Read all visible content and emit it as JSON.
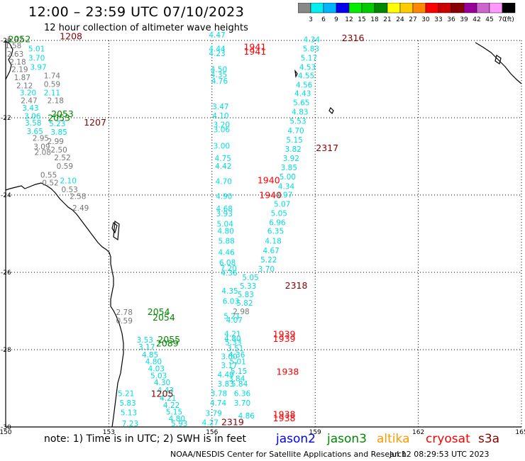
{
  "header": {
    "title": "12:00 – 23:59 UTC 07/10/2023",
    "subtitle": "12 hour collection of altimeter wave heights"
  },
  "scale": {
    "colors": [
      "#888888",
      "#00eeee",
      "#00b4ff",
      "#0000ee",
      "#00ee00",
      "#00cc00",
      "#008800",
      "#ffff00",
      "#ffcc00",
      "#ff8800",
      "#ff0000",
      "#cc0000",
      "#880000",
      "#990099",
      "#cc66cc",
      "#ff99ff",
      "#000000"
    ],
    "labels": [
      "3",
      "6",
      "9",
      "12",
      "15",
      "18",
      "21",
      "24",
      "27",
      "30",
      "33",
      "36",
      "39",
      "42",
      "45",
      "70"
    ],
    "unit": "(ft)"
  },
  "map": {
    "lon_min": 150,
    "lon_max": 165,
    "lat_top": -20,
    "lat_bottom": -30,
    "x_ticks": [
      "150",
      "153",
      "156",
      "159",
      "162",
      "165"
    ],
    "y_ticks": [
      "-20",
      "-22",
      "-24",
      "-26",
      "-28",
      "-30"
    ],
    "colors": {
      "jason2": "#0000ff",
      "jason3": "#008800",
      "altika": "#ff9900",
      "cryosat": "#ff0000",
      "s3a": "#880000",
      "wave_cyan": "#00dddd",
      "wave_gray": "#777777"
    }
  },
  "wave_data": [
    {
      "value": "1.92",
      "lon": 150.28,
      "lat": -20.05,
      "color": "#777777"
    },
    {
      "value": "1.58",
      "lon": 150.22,
      "lat": -20.2,
      "color": "#777777"
    },
    {
      "value": "2.63",
      "lon": 150.28,
      "lat": -20.42,
      "color": "#777777"
    },
    {
      "value": "2.18",
      "lon": 150.35,
      "lat": -20.62,
      "color": "#777777"
    },
    {
      "value": "2.19",
      "lon": 150.41,
      "lat": -20.82,
      "color": "#777777"
    },
    {
      "value": "1.87",
      "lon": 150.48,
      "lat": -21.03,
      "color": "#777777"
    },
    {
      "value": "2.12",
      "lon": 150.55,
      "lat": -21.24,
      "color": "#777777"
    },
    {
      "value": "2.47",
      "lon": 150.68,
      "lat": -21.62,
      "color": "#777777"
    },
    {
      "value": "1.74",
      "lon": 151.35,
      "lat": -20.98,
      "color": "#777777"
    },
    {
      "value": "0.59",
      "lon": 151.35,
      "lat": -21.2,
      "color": "#777777"
    },
    {
      "value": "2.18",
      "lon": 151.45,
      "lat": -21.62,
      "color": "#777777"
    },
    {
      "value": "2.95",
      "lon": 151.02,
      "lat": -22.6,
      "color": "#777777"
    },
    {
      "value": "2.99",
      "lon": 151.45,
      "lat": -22.68,
      "color": "#777777"
    },
    {
      "value": "3.09",
      "lon": 151.05,
      "lat": -22.82,
      "color": "#777777"
    },
    {
      "value": "2.50",
      "lon": 151.55,
      "lat": -22.9,
      "color": "#777777"
    },
    {
      "value": "2.08",
      "lon": 151.08,
      "lat": -22.96,
      "color": "#777777"
    },
    {
      "value": "2.52",
      "lon": 151.65,
      "lat": -23.1,
      "color": "#777777"
    },
    {
      "value": "0.59",
      "lon": 151.72,
      "lat": -23.32,
      "color": "#777777"
    },
    {
      "value": "0.55",
      "lon": 151.25,
      "lat": -23.55,
      "color": "#777777"
    },
    {
      "value": "0.52",
      "lon": 151.3,
      "lat": -23.75,
      "color": "#777777"
    },
    {
      "value": "0.53",
      "lon": 151.86,
      "lat": -23.93,
      "color": "#777777"
    },
    {
      "value": "2.58",
      "lon": 152.1,
      "lat": -24.1,
      "color": "#777777"
    },
    {
      "value": "2.49",
      "lon": 152.18,
      "lat": -24.4,
      "color": "#777777"
    },
    {
      "value": "5.01",
      "lon": 150.9,
      "lat": -20.28,
      "color": "#00dddd"
    },
    {
      "value": "3.70",
      "lon": 150.9,
      "lat": -20.52,
      "color": "#00dddd"
    },
    {
      "value": "3.97",
      "lon": 150.95,
      "lat": -20.76,
      "color": "#00dddd"
    },
    {
      "value": "3.20",
      "lon": 150.65,
      "lat": -21.42,
      "color": "#00dddd"
    },
    {
      "value": "2.11",
      "lon": 151.35,
      "lat": -21.42,
      "color": "#00dddd"
    },
    {
      "value": "3.43",
      "lon": 150.72,
      "lat": -21.82,
      "color": "#00dddd"
    },
    {
      "value": "3.06",
      "lon": 150.78,
      "lat": -22.03,
      "color": "#00dddd"
    },
    {
      "value": "3.58",
      "lon": 150.8,
      "lat": -22.2,
      "color": "#00dddd"
    },
    {
      "value": "5.23",
      "lon": 151.5,
      "lat": -22.22,
      "color": "#00dddd"
    },
    {
      "value": "3.85",
      "lon": 151.55,
      "lat": -22.44,
      "color": "#00dddd"
    },
    {
      "value": "3.65",
      "lon": 150.85,
      "lat": -22.42,
      "color": "#00dddd"
    },
    {
      "value": "2.10",
      "lon": 151.82,
      "lat": -23.7,
      "color": "#00dddd"
    },
    {
      "value": "4.47",
      "lon": 156.15,
      "lat": -19.93,
      "color": "#00dddd"
    },
    {
      "value": "4.44",
      "lon": 156.15,
      "lat": -20.28,
      "color": "#00dddd"
    },
    {
      "value": "4.23",
      "lon": 156.15,
      "lat": -20.4,
      "color": "#00dddd"
    },
    {
      "value": "4.50",
      "lon": 156.2,
      "lat": -20.82,
      "color": "#00dddd"
    },
    {
      "value": "4.35",
      "lon": 156.2,
      "lat": -20.95,
      "color": "#00dddd"
    },
    {
      "value": "4.76",
      "lon": 156.22,
      "lat": -21.12,
      "color": "#00dddd"
    },
    {
      "value": "3.47",
      "lon": 156.25,
      "lat": -21.78,
      "color": "#00dddd"
    },
    {
      "value": "4.10",
      "lon": 156.25,
      "lat": -22.02,
      "color": "#00dddd"
    },
    {
      "value": "3.20",
      "lon": 156.28,
      "lat": -22.25,
      "color": "#00dddd"
    },
    {
      "value": "3.06",
      "lon": 156.28,
      "lat": -22.38,
      "color": "#00dddd"
    },
    {
      "value": "3.00",
      "lon": 156.28,
      "lat": -22.8,
      "color": "#00dddd"
    },
    {
      "value": "4.75",
      "lon": 156.32,
      "lat": -23.12,
      "color": "#00dddd"
    },
    {
      "value": "4.42",
      "lon": 156.33,
      "lat": -23.32,
      "color": "#00dddd"
    },
    {
      "value": "4.70",
      "lon": 156.34,
      "lat": -23.72,
      "color": "#00dddd"
    },
    {
      "value": "4.90",
      "lon": 156.35,
      "lat": -24.1,
      "color": "#00dddd"
    },
    {
      "value": "4.68",
      "lon": 156.36,
      "lat": -24.42,
      "color": "#00dddd"
    },
    {
      "value": "3.93",
      "lon": 156.36,
      "lat": -24.55,
      "color": "#00dddd"
    },
    {
      "value": "5.04",
      "lon": 156.38,
      "lat": -24.82,
      "color": "#00dddd"
    },
    {
      "value": "4.80",
      "lon": 156.4,
      "lat": -25.0,
      "color": "#00dddd"
    },
    {
      "value": "5.88",
      "lon": 156.42,
      "lat": -25.26,
      "color": "#00dddd"
    },
    {
      "value": "4.46",
      "lon": 156.42,
      "lat": -25.55,
      "color": "#00dddd"
    },
    {
      "value": "6.08",
      "lon": 156.45,
      "lat": -25.82,
      "color": "#00dddd"
    },
    {
      "value": "7.20",
      "lon": 156.48,
      "lat": -25.96,
      "color": "#00dddd"
    },
    {
      "value": "4.36",
      "lon": 156.5,
      "lat": -26.08,
      "color": "#00dddd"
    },
    {
      "value": "4.35",
      "lon": 156.52,
      "lat": -26.55,
      "color": "#00dddd"
    },
    {
      "value": "6.03",
      "lon": 156.55,
      "lat": -26.82,
      "color": "#00dddd"
    },
    {
      "value": "5.21",
      "lon": 156.58,
      "lat": -27.2,
      "color": "#00dddd"
    },
    {
      "value": "4.07",
      "lon": 156.65,
      "lat": -27.3,
      "color": "#00dddd"
    },
    {
      "value": "4.21",
      "lon": 156.6,
      "lat": -27.66,
      "color": "#00dddd"
    },
    {
      "value": "4.80",
      "lon": 156.6,
      "lat": -27.78,
      "color": "#00dddd"
    },
    {
      "value": "5.33",
      "lon": 156.62,
      "lat": -27.88,
      "color": "#00dddd"
    },
    {
      "value": "3.51",
      "lon": 156.68,
      "lat": -28.04,
      "color": "#00dddd"
    },
    {
      "value": "3.00",
      "lon": 156.5,
      "lat": -28.25,
      "color": "#00dddd"
    },
    {
      "value": "4.36",
      "lon": 156.72,
      "lat": -28.2,
      "color": "#00dddd"
    },
    {
      "value": "5.01",
      "lon": 156.75,
      "lat": -28.38,
      "color": "#00dddd"
    },
    {
      "value": "3.17",
      "lon": 156.5,
      "lat": -28.48,
      "color": "#00dddd"
    },
    {
      "value": "5.15",
      "lon": 156.78,
      "lat": -28.62,
      "color": "#00dddd"
    },
    {
      "value": "4.49",
      "lon": 156.4,
      "lat": -28.72,
      "color": "#00dddd"
    },
    {
      "value": "3.84",
      "lon": 156.72,
      "lat": -28.82,
      "color": "#00dddd"
    },
    {
      "value": "3.83",
      "lon": 156.4,
      "lat": -28.95,
      "color": "#00dddd"
    },
    {
      "value": "5.84",
      "lon": 156.8,
      "lat": -28.95,
      "color": "#00dddd"
    },
    {
      "value": "3.78",
      "lon": 156.2,
      "lat": -29.2,
      "color": "#00dddd"
    },
    {
      "value": "6.36",
      "lon": 156.88,
      "lat": -29.2,
      "color": "#00dddd"
    },
    {
      "value": "4.74",
      "lon": 156.18,
      "lat": -29.45,
      "color": "#00dddd"
    },
    {
      "value": "3.70",
      "lon": 156.88,
      "lat": -29.45,
      "color": "#00dddd"
    },
    {
      "value": "3.79",
      "lon": 156.05,
      "lat": -29.72,
      "color": "#00dddd"
    },
    {
      "value": "4.86",
      "lon": 157.0,
      "lat": -29.78,
      "color": "#00dddd"
    },
    {
      "value": "4.27",
      "lon": 155.95,
      "lat": -29.95,
      "color": "#00dddd"
    },
    {
      "value": "4.34",
      "lon": 158.9,
      "lat": -20.05,
      "color": "#00dddd"
    },
    {
      "value": "5.83",
      "lon": 158.88,
      "lat": -20.28,
      "color": "#00dddd"
    },
    {
      "value": "5.17",
      "lon": 158.82,
      "lat": -20.52,
      "color": "#00dddd"
    },
    {
      "value": "4.53",
      "lon": 158.78,
      "lat": -20.76,
      "color": "#00dddd"
    },
    {
      "value": "4.55",
      "lon": 158.74,
      "lat": -20.98,
      "color": "#00dddd"
    },
    {
      "value": "4.56",
      "lon": 158.68,
      "lat": -21.22,
      "color": "#00dddd"
    },
    {
      "value": "4.43",
      "lon": 158.64,
      "lat": -21.44,
      "color": "#00dddd"
    },
    {
      "value": "5.65",
      "lon": 158.6,
      "lat": -21.68,
      "color": "#00dddd"
    },
    {
      "value": "4.83",
      "lon": 158.56,
      "lat": -21.92,
      "color": "#00dddd"
    },
    {
      "value": "5.53",
      "lon": 158.5,
      "lat": -22.16,
      "color": "#00dddd"
    },
    {
      "value": "4.70",
      "lon": 158.44,
      "lat": -22.4,
      "color": "#00dddd"
    },
    {
      "value": "5.15",
      "lon": 158.4,
      "lat": -22.64,
      "color": "#00dddd"
    },
    {
      "value": "3.82",
      "lon": 158.36,
      "lat": -22.88,
      "color": "#00dddd"
    },
    {
      "value": "3.92",
      "lon": 158.3,
      "lat": -23.12,
      "color": "#00dddd"
    },
    {
      "value": "3.85",
      "lon": 158.24,
      "lat": -23.36,
      "color": "#00dddd"
    },
    {
      "value": "5.00",
      "lon": 158.2,
      "lat": -23.6,
      "color": "#00dddd"
    },
    {
      "value": "4.34",
      "lon": 158.16,
      "lat": -23.84,
      "color": "#00dddd"
    },
    {
      "value": "4.97",
      "lon": 158.1,
      "lat": -24.06,
      "color": "#00dddd"
    },
    {
      "value": "5.07",
      "lon": 158.04,
      "lat": -24.3,
      "color": "#00dddd"
    },
    {
      "value": "5.05",
      "lon": 157.95,
      "lat": -24.54,
      "color": "#00dddd"
    },
    {
      "value": "6.96",
      "lon": 157.9,
      "lat": -24.78,
      "color": "#00dddd"
    },
    {
      "value": "6.35",
      "lon": 157.85,
      "lat": -25.0,
      "color": "#00dddd"
    },
    {
      "value": "4.18",
      "lon": 157.78,
      "lat": -25.26,
      "color": "#00dddd"
    },
    {
      "value": "4.67",
      "lon": 157.72,
      "lat": -25.5,
      "color": "#00dddd"
    },
    {
      "value": "5.22",
      "lon": 157.65,
      "lat": -25.74,
      "color": "#00dddd"
    },
    {
      "value": "3.70",
      "lon": 157.58,
      "lat": -25.98,
      "color": "#00dddd"
    },
    {
      "value": "5.05",
      "lon": 157.12,
      "lat": -26.2,
      "color": "#00dddd"
    },
    {
      "value": "5.33",
      "lon": 157.05,
      "lat": -26.42,
      "color": "#00dddd"
    },
    {
      "value": "5.83",
      "lon": 156.98,
      "lat": -26.64,
      "color": "#00dddd"
    },
    {
      "value": "5.82",
      "lon": 156.95,
      "lat": -26.86,
      "color": "#00dddd"
    },
    {
      "value": "2.98",
      "lon": 156.85,
      "lat": -27.08,
      "color": "#777777"
    },
    {
      "value": "2.78",
      "lon": 153.45,
      "lat": -27.1,
      "color": "#777777"
    },
    {
      "value": "0.59",
      "lon": 153.45,
      "lat": -27.32,
      "color": "#777777"
    },
    {
      "value": "3.53",
      "lon": 154.05,
      "lat": -27.82,
      "color": "#00dddd"
    },
    {
      "value": "3.17",
      "lon": 154.1,
      "lat": -28.0,
      "color": "#00dddd"
    },
    {
      "value": "4.85",
      "lon": 154.2,
      "lat": -28.2,
      "color": "#00dddd"
    },
    {
      "value": "4.80",
      "lon": 154.3,
      "lat": -28.38,
      "color": "#00dddd"
    },
    {
      "value": "4.03",
      "lon": 154.38,
      "lat": -28.56,
      "color": "#00dddd"
    },
    {
      "value": "5.03",
      "lon": 154.45,
      "lat": -28.74,
      "color": "#00dddd"
    },
    {
      "value": "4.30",
      "lon": 154.55,
      "lat": -28.92,
      "color": "#00dddd"
    },
    {
      "value": "4.43",
      "lon": 154.65,
      "lat": -29.12,
      "color": "#00dddd"
    },
    {
      "value": "5.21",
      "lon": 153.5,
      "lat": -29.2,
      "color": "#00dddd"
    },
    {
      "value": "5.83",
      "lon": 153.55,
      "lat": -29.45,
      "color": "#00dddd"
    },
    {
      "value": "5.13",
      "lon": 153.58,
      "lat": -29.7,
      "color": "#00dddd"
    },
    {
      "value": "7.23",
      "lon": 153.62,
      "lat": -29.98,
      "color": "#00dddd"
    },
    {
      "value": "4.21",
      "lon": 154.72,
      "lat": -29.32,
      "color": "#00dddd"
    },
    {
      "value": "4.22",
      "lon": 154.82,
      "lat": -29.5,
      "color": "#00dddd"
    },
    {
      "value": "5.15",
      "lon": 154.9,
      "lat": -29.68,
      "color": "#00dddd"
    },
    {
      "value": "4.80",
      "lon": 154.98,
      "lat": -29.85,
      "color": "#00dddd"
    },
    {
      "value": "5.93",
      "lon": 155.05,
      "lat": -29.98,
      "color": "#00dddd"
    }
  ],
  "time_labels": [
    {
      "text": "2052",
      "lon": 150.4,
      "lat": -20.05,
      "color": "#008800"
    },
    {
      "text": "1208",
      "lon": 151.9,
      "lat": -19.97,
      "color": "#880000"
    },
    {
      "text": "2053",
      "lon": 151.65,
      "lat": -21.98,
      "color": "#008800"
    },
    {
      "text": "2053",
      "lon": 151.55,
      "lat": -22.08,
      "color": "#008800"
    },
    {
      "text": "1207",
      "lon": 152.6,
      "lat": -22.2,
      "color": "#880000"
    },
    {
      "text": "1941",
      "lon": 157.25,
      "lat": -20.25,
      "color": "#ff0000"
    },
    {
      "text": "1941",
      "lon": 157.25,
      "lat": -20.37,
      "color": "#ff0000"
    },
    {
      "text": "2316",
      "lon": 160.1,
      "lat": -20.02,
      "color": "#880000"
    },
    {
      "text": "2317",
      "lon": 159.35,
      "lat": -22.86,
      "color": "#880000"
    },
    {
      "text": "1940",
      "lon": 157.65,
      "lat": -23.7,
      "color": "#ff0000"
    },
    {
      "text": "1940",
      "lon": 157.7,
      "lat": -24.08,
      "color": "#ff0000"
    },
    {
      "text": "2318",
      "lon": 158.45,
      "lat": -26.42,
      "color": "#880000"
    },
    {
      "text": "2054",
      "lon": 154.45,
      "lat": -27.1,
      "color": "#008800"
    },
    {
      "text": "2054",
      "lon": 154.6,
      "lat": -27.25,
      "color": "#008800"
    },
    {
      "text": "1939",
      "lon": 158.1,
      "lat": -27.68,
      "color": "#ff0000"
    },
    {
      "text": "1939",
      "lon": 158.1,
      "lat": -27.8,
      "color": "#ff0000"
    },
    {
      "text": "2055",
      "lon": 154.75,
      "lat": -27.82,
      "color": "#008800"
    },
    {
      "text": "2089",
      "lon": 154.7,
      "lat": -27.92,
      "color": "#008800"
    },
    {
      "text": "1938",
      "lon": 158.2,
      "lat": -28.65,
      "color": "#ff0000"
    },
    {
      "text": "1205",
      "lon": 154.55,
      "lat": -29.22,
      "color": "#880000"
    },
    {
      "text": "1938",
      "lon": 158.1,
      "lat": -29.75,
      "color": "#ff0000"
    },
    {
      "text": "1938",
      "lon": 158.1,
      "lat": -29.85,
      "color": "#ff0000"
    },
    {
      "text": "2319",
      "lon": 156.6,
      "lat": -29.95,
      "color": "#880000"
    }
  ],
  "footer": {
    "note": "note:  1) Time is in UTC;  2) SWH is in feet",
    "sats": {
      "jason2": "jason2",
      "jason3": "jason3",
      "altika": "altika",
      "cryosat": "cryosat",
      "s3a": "s3a"
    },
    "credit": "NOAA/NESDIS Center for Satellite Applications and Research",
    "timestamp": "Jul 12 08:29:53 UTC 2023"
  }
}
